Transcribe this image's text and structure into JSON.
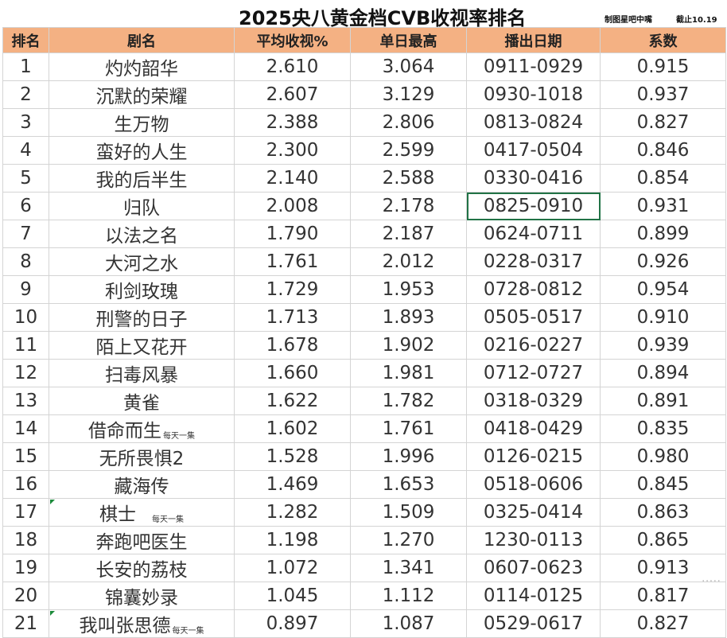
{
  "title": "2025央八黄金档CVB收视率排名",
  "notes": {
    "maker": "制图星吧中嘴",
    "cutoff": "截止10.19"
  },
  "columns": [
    "排名",
    "剧名",
    "平均收视%",
    "单日最高",
    "播出日期",
    "系数"
  ],
  "rows": [
    {
      "rank": "1",
      "name": "灼灼韶华",
      "tag": "",
      "avg": "2.610",
      "peak": "3.064",
      "dates": "0911-0929",
      "coef": "0.915"
    },
    {
      "rank": "2",
      "name": "沉默的荣耀",
      "tag": "",
      "avg": "2.607",
      "peak": "3.129",
      "dates": "0930-1018",
      "coef": "0.937"
    },
    {
      "rank": "3",
      "name": "生万物",
      "tag": "",
      "avg": "2.388",
      "peak": "2.806",
      "dates": "0813-0824",
      "coef": "0.827"
    },
    {
      "rank": "4",
      "name": "蛮好的人生",
      "tag": "",
      "avg": "2.300",
      "peak": "2.599",
      "dates": "0417-0504",
      "coef": "0.846"
    },
    {
      "rank": "5",
      "name": "我的后半生",
      "tag": "",
      "avg": "2.140",
      "peak": "2.588",
      "dates": "0330-0416",
      "coef": "0.854"
    },
    {
      "rank": "6",
      "name": "归队",
      "tag": "",
      "avg": "2.008",
      "peak": "2.178",
      "dates": "0825-0910",
      "coef": "0.931"
    },
    {
      "rank": "7",
      "name": "以法之名",
      "tag": "",
      "avg": "1.790",
      "peak": "2.187",
      "dates": "0624-0711",
      "coef": "0.899"
    },
    {
      "rank": "8",
      "name": "大河之水",
      "tag": "",
      "avg": "1.761",
      "peak": "2.012",
      "dates": "0228-0317",
      "coef": "0.926"
    },
    {
      "rank": "9",
      "name": "利剑玫瑰",
      "tag": "",
      "avg": "1.729",
      "peak": "1.953",
      "dates": "0728-0812",
      "coef": "0.954"
    },
    {
      "rank": "10",
      "name": "刑警的日子",
      "tag": "",
      "avg": "1.713",
      "peak": "1.893",
      "dates": "0505-0517",
      "coef": "0.910"
    },
    {
      "rank": "11",
      "name": "陌上又花开",
      "tag": "",
      "avg": "1.678",
      "peak": "1.902",
      "dates": "0216-0227",
      "coef": "0.939"
    },
    {
      "rank": "12",
      "name": "扫毒风暴",
      "tag": "",
      "avg": "1.660",
      "peak": "1.981",
      "dates": "0712-0727",
      "coef": "0.894"
    },
    {
      "rank": "13",
      "name": "黄雀",
      "tag": "",
      "avg": "1.622",
      "peak": "1.782",
      "dates": "0318-0329",
      "coef": "0.891"
    },
    {
      "rank": "14",
      "name": "借命而生",
      "tag": "每天一集",
      "avg": "1.602",
      "peak": "1.761",
      "dates": "0418-0429",
      "coef": "0.835"
    },
    {
      "rank": "15",
      "name": "无所畏惧2",
      "tag": "",
      "avg": "1.528",
      "peak": "1.996",
      "dates": "0126-0215",
      "coef": "0.980"
    },
    {
      "rank": "16",
      "name": "藏海传",
      "tag": "",
      "avg": "1.469",
      "peak": "1.653",
      "dates": "0518-0606",
      "coef": "0.845"
    },
    {
      "rank": "17",
      "name": "棋士",
      "tag": "每天一集",
      "avg": "1.282",
      "peak": "1.509",
      "dates": "0325-0414",
      "coef": "0.863"
    },
    {
      "rank": "18",
      "name": "奔跑吧医生",
      "tag": "",
      "avg": "1.198",
      "peak": "1.270",
      "dates": "1230-0113",
      "coef": "0.865"
    },
    {
      "rank": "19",
      "name": "长安的荔枝",
      "tag": "",
      "avg": "1.072",
      "peak": "1.341",
      "dates": "0607-0623",
      "coef": "0.913"
    },
    {
      "rank": "20",
      "name": "锦囊妙录",
      "tag": "",
      "avg": "1.045",
      "peak": "1.112",
      "dates": "0114-0125",
      "coef": "0.817"
    },
    {
      "rank": "21",
      "name": "我叫张思德",
      "tag": "每天一集",
      "avg": "0.897",
      "peak": "1.087",
      "dates": "0529-0617",
      "coef": "0.827"
    }
  ],
  "selected_cell": {
    "row": 6,
    "column": "播出日期"
  },
  "colors": {
    "header_bg": "#f4b183",
    "grid_line": "#d4d4d4",
    "selection": "#217346",
    "comment_marker": "#1b8a3a"
  }
}
